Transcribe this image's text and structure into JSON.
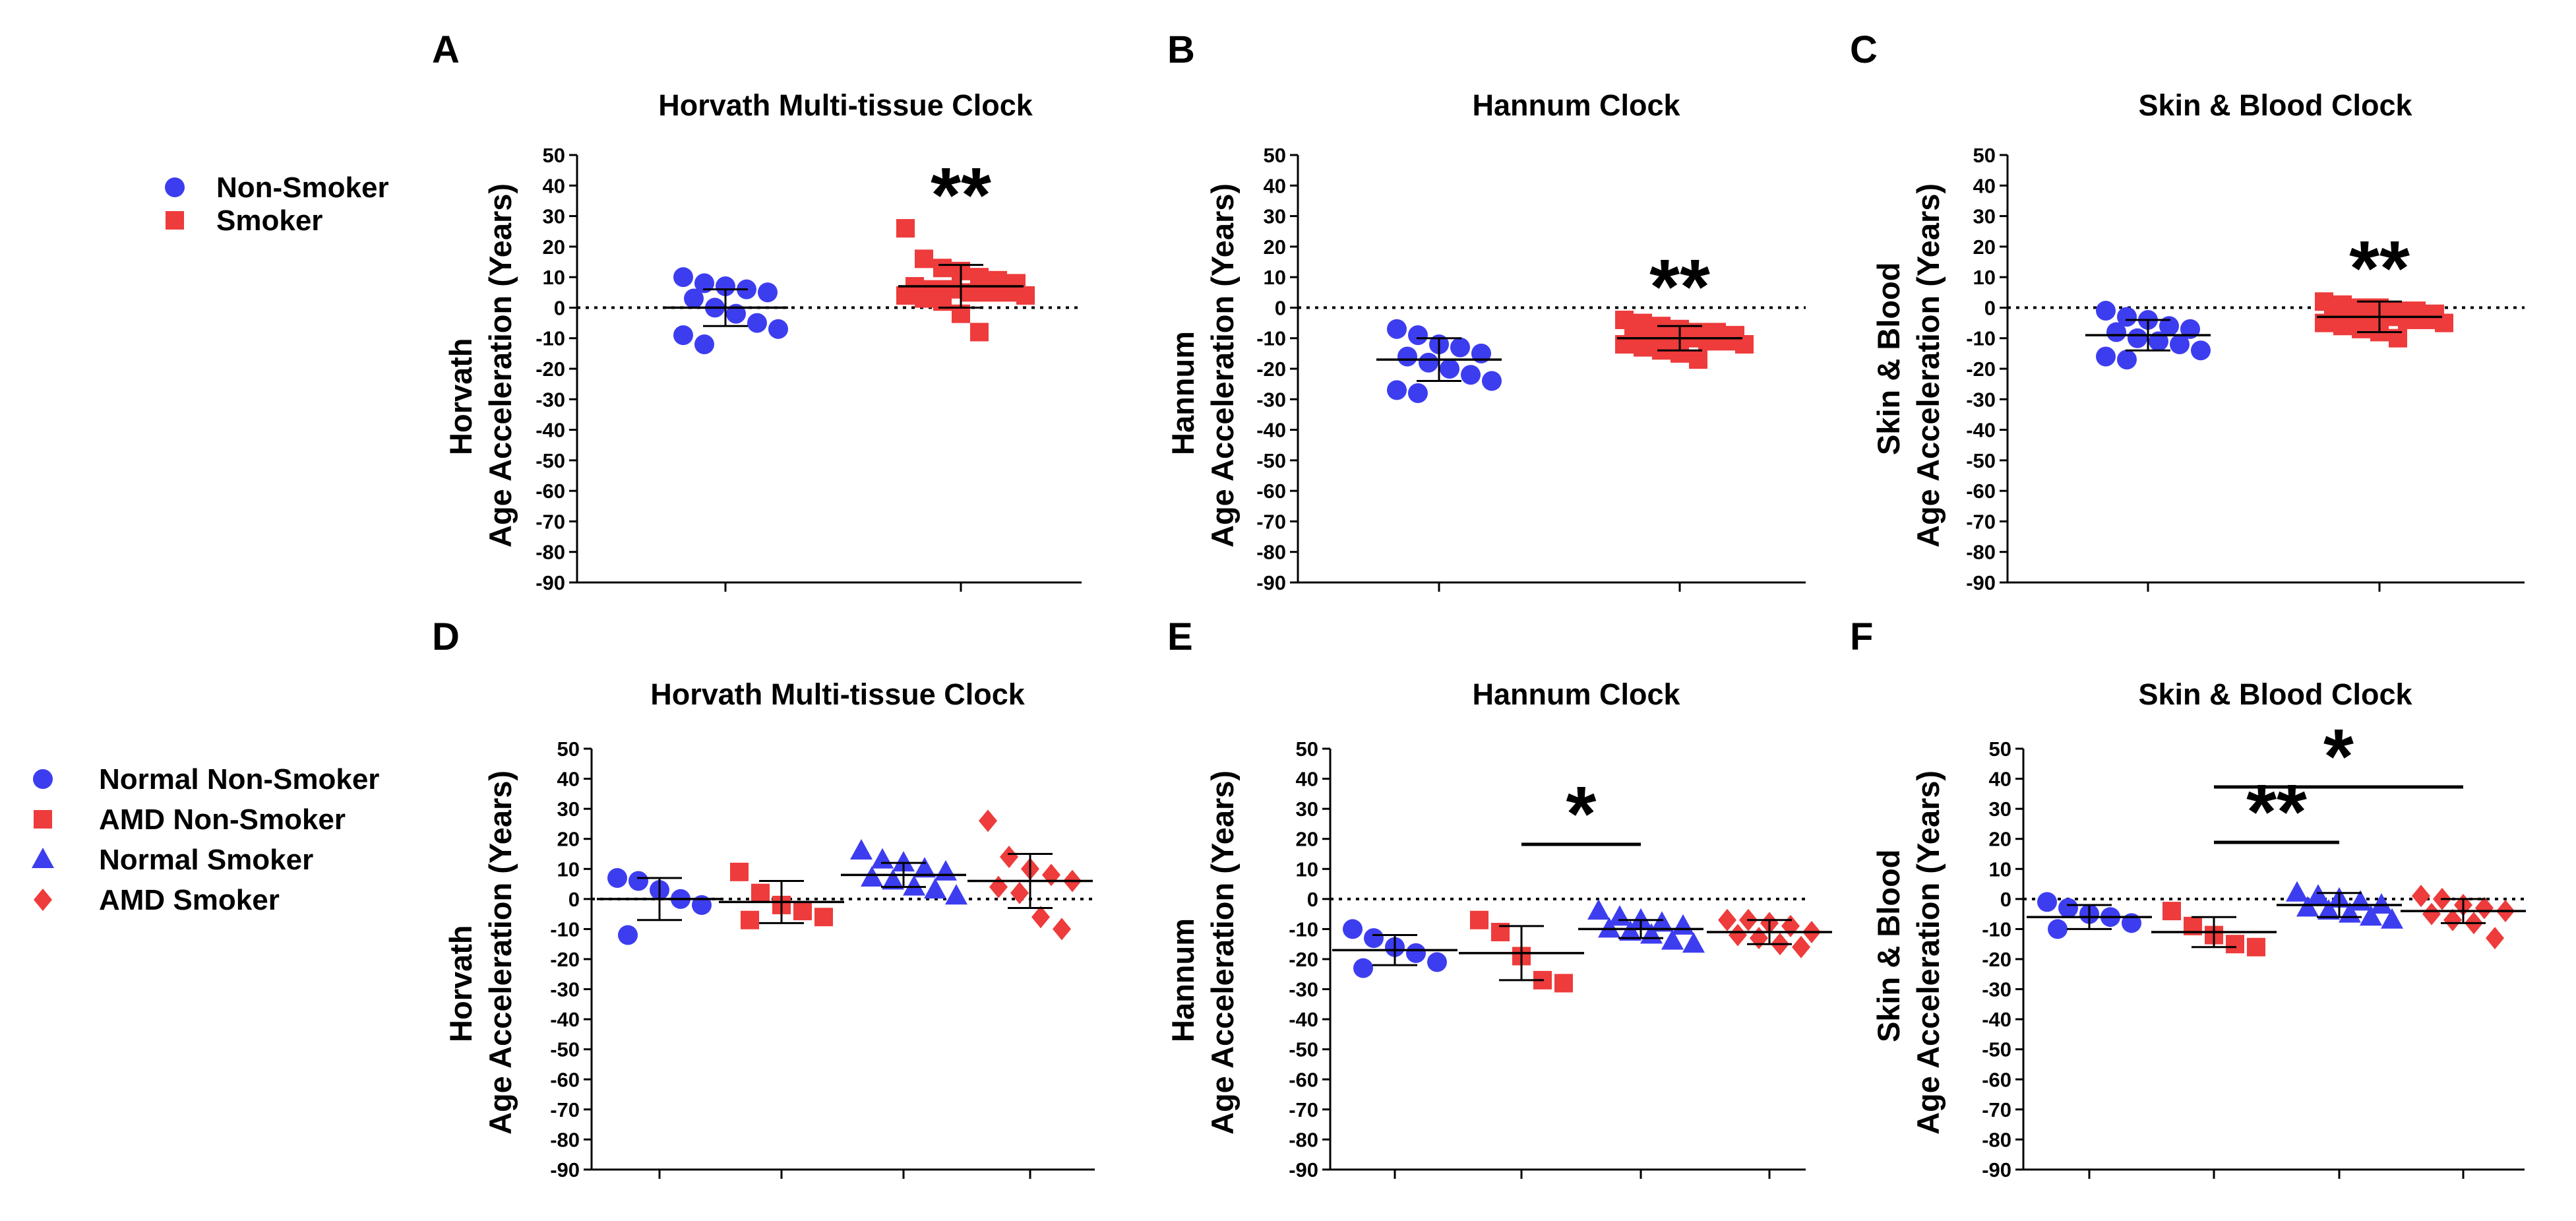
{
  "colors": {
    "blue": "#3d3df0",
    "red": "#ee3b3b",
    "axis": "#000000"
  },
  "legends": [
    {
      "name": "legend-top",
      "entries": [
        {
          "label": "Non-Smoker",
          "shape": "circle",
          "color": "#3d3df0"
        },
        {
          "label": "Smoker",
          "shape": "square",
          "color": "#ee3b3b"
        }
      ]
    },
    {
      "name": "legend-bottom",
      "entries": [
        {
          "label": "Normal Non-Smoker",
          "shape": "circle",
          "color": "#3d3df0"
        },
        {
          "label": "AMD Non-Smoker",
          "shape": "square",
          "color": "#ee3b3b"
        },
        {
          "label": "Normal Smoker",
          "shape": "triangle",
          "color": "#3d3df0"
        },
        {
          "label": "AMD Smoker",
          "shape": "diamond",
          "color": "#ee3b3b"
        }
      ]
    }
  ],
  "chart_data": [
    {
      "panel": "A",
      "type": "scatter",
      "title": "Horvath Multi-tissue Clock",
      "ylabel_lines": [
        "Horvath",
        "Age Acceleration (Years)"
      ],
      "ylim": [
        -90,
        50
      ],
      "yticks": [
        50,
        40,
        30,
        20,
        10,
        0,
        -10,
        -20,
        -30,
        -40,
        -50,
        -60,
        -70,
        -80,
        -90
      ],
      "reference_line": 0,
      "groups": [
        {
          "name": "Non-Smoker",
          "shape": "circle",
          "color": "#3d3df0",
          "mean": 0,
          "sd": 6,
          "values": [
            10,
            8,
            7,
            6,
            5,
            3,
            0,
            -2,
            -5,
            -7,
            -9,
            -12
          ]
        },
        {
          "name": "Smoker",
          "shape": "square",
          "color": "#ee3b3b",
          "mean": 7,
          "sd": 7,
          "values": [
            26,
            16,
            13,
            12,
            10,
            9,
            8,
            7,
            6,
            6,
            5,
            5,
            5,
            4,
            4,
            3,
            2,
            -2,
            -8
          ]
        }
      ],
      "significance": [
        {
          "label": "**",
          "group": 1
        }
      ]
    },
    {
      "panel": "B",
      "type": "scatter",
      "title": "Hannum Clock",
      "ylabel_lines": [
        "Hannum",
        "Age Acceleration (Years)"
      ],
      "ylim": [
        -90,
        50
      ],
      "yticks": [
        50,
        40,
        30,
        20,
        10,
        0,
        -10,
        -20,
        -30,
        -40,
        -50,
        -60,
        -70,
        -80,
        -90
      ],
      "reference_line": 0,
      "groups": [
        {
          "name": "Non-Smoker",
          "shape": "circle",
          "color": "#3d3df0",
          "mean": -17,
          "sd": 7,
          "values": [
            -7,
            -9,
            -12,
            -13,
            -15,
            -16,
            -18,
            -20,
            -22,
            -24,
            -27,
            -28
          ]
        },
        {
          "name": "Smoker",
          "shape": "square",
          "color": "#ee3b3b",
          "mean": -10,
          "sd": 4,
          "values": [
            -4,
            -5,
            -6,
            -7,
            -8,
            -8,
            -9,
            -9,
            -10,
            -10,
            -10,
            -11,
            -11,
            -12,
            -12,
            -13,
            -14,
            -15,
            -17
          ]
        }
      ],
      "significance": [
        {
          "label": "**",
          "group": 1
        }
      ]
    },
    {
      "panel": "C",
      "type": "scatter",
      "title": "Skin & Blood Clock",
      "ylabel_lines": [
        "Skin & Blood",
        "Age Acceleration (Years)"
      ],
      "ylim": [
        -90,
        50
      ],
      "yticks": [
        50,
        40,
        30,
        20,
        10,
        0,
        -10,
        -20,
        -30,
        -40,
        -50,
        -60,
        -70,
        -80,
        -90
      ],
      "reference_line": 0,
      "groups": [
        {
          "name": "Non-Smoker",
          "shape": "circle",
          "color": "#3d3df0",
          "mean": -9,
          "sd": 5,
          "values": [
            -1,
            -3,
            -4,
            -6,
            -7,
            -8,
            -10,
            -11,
            -12,
            -14,
            -16,
            -17
          ]
        },
        {
          "name": "Smoker",
          "shape": "square",
          "color": "#ee3b3b",
          "mean": -3,
          "sd": 5,
          "values": [
            2,
            1,
            0,
            0,
            -1,
            -1,
            -2,
            -2,
            -3,
            -3,
            -3,
            -4,
            -4,
            -5,
            -5,
            -6,
            -7,
            -8,
            -10
          ]
        }
      ],
      "significance": [
        {
          "label": "**",
          "group": 1
        }
      ]
    },
    {
      "panel": "D",
      "type": "scatter",
      "title": "Horvath Multi-tissue Clock",
      "ylabel_lines": [
        "Horvath",
        "Age Acceleration (Years)"
      ],
      "ylim": [
        -90,
        50
      ],
      "yticks": [
        50,
        40,
        30,
        20,
        10,
        0,
        -10,
        -20,
        -30,
        -40,
        -50,
        -60,
        -70,
        -80,
        -90
      ],
      "reference_line": 0,
      "groups": [
        {
          "name": "Normal Non-Smoker",
          "shape": "circle",
          "color": "#3d3df0",
          "mean": 0,
          "sd": 7,
          "values": [
            7,
            6,
            3,
            0,
            -2,
            -12
          ]
        },
        {
          "name": "AMD Non-Smoker",
          "shape": "square",
          "color": "#ee3b3b",
          "mean": -1,
          "sd": 7,
          "values": [
            9,
            2,
            -2,
            -4,
            -6,
            -7
          ]
        },
        {
          "name": "Normal Smoker",
          "shape": "triangle",
          "color": "#3d3df0",
          "mean": 8,
          "sd": 4,
          "values": [
            16,
            13,
            12,
            10,
            9,
            7,
            6,
            4,
            3,
            1
          ]
        },
        {
          "name": "AMD Smoker",
          "shape": "diamond",
          "color": "#ee3b3b",
          "mean": 6,
          "sd": 9,
          "values": [
            26,
            14,
            10,
            8,
            6,
            4,
            2,
            -6,
            -10
          ]
        }
      ],
      "significance": []
    },
    {
      "panel": "E",
      "type": "scatter",
      "title": "Hannum Clock",
      "ylabel_lines": [
        "Hannum",
        "Age Acceleration (Years)"
      ],
      "ylim": [
        -90,
        50
      ],
      "yticks": [
        50,
        40,
        30,
        20,
        10,
        0,
        -10,
        -20,
        -30,
        -40,
        -50,
        -60,
        -70,
        -80,
        -90
      ],
      "reference_line": 0,
      "groups": [
        {
          "name": "Normal Non-Smoker",
          "shape": "circle",
          "color": "#3d3df0",
          "mean": -17,
          "sd": 5,
          "values": [
            -10,
            -13,
            -16,
            -18,
            -21,
            -23
          ]
        },
        {
          "name": "AMD Non-Smoker",
          "shape": "square",
          "color": "#ee3b3b",
          "mean": -18,
          "sd": 9,
          "values": [
            -7,
            -11,
            -19,
            -27,
            -28
          ]
        },
        {
          "name": "Normal Smoker",
          "shape": "triangle",
          "color": "#3d3df0",
          "mean": -10,
          "sd": 3,
          "values": [
            -4,
            -6,
            -7,
            -8,
            -9,
            -10,
            -11,
            -12,
            -14,
            -15
          ]
        },
        {
          "name": "AMD Smoker",
          "shape": "diamond",
          "color": "#ee3b3b",
          "mean": -11,
          "sd": 4,
          "values": [
            -7,
            -7,
            -8,
            -9,
            -11,
            -12,
            -13,
            -15,
            -16
          ]
        }
      ],
      "significance": [
        {
          "label": "*",
          "from": 1,
          "to": 2
        }
      ]
    },
    {
      "panel": "F",
      "type": "scatter",
      "title": "Skin & Blood Clock",
      "ylabel_lines": [
        "Skin & Blood",
        "Age Acceleration (Years)"
      ],
      "ylim": [
        -90,
        50
      ],
      "yticks": [
        50,
        40,
        30,
        20,
        10,
        0,
        -10,
        -20,
        -30,
        -40,
        -50,
        -60,
        -70,
        -80,
        -90
      ],
      "reference_line": 0,
      "groups": [
        {
          "name": "Normal Non-Smoker",
          "shape": "circle",
          "color": "#3d3df0",
          "mean": -6,
          "sd": 4,
          "values": [
            -1,
            -3,
            -5,
            -6,
            -8,
            -10
          ]
        },
        {
          "name": "AMD Non-Smoker",
          "shape": "square",
          "color": "#ee3b3b",
          "mean": -11,
          "sd": 5,
          "values": [
            -4,
            -9,
            -12,
            -15,
            -16
          ]
        },
        {
          "name": "Normal Smoker",
          "shape": "triangle",
          "color": "#3d3df0",
          "mean": -2,
          "sd": 4,
          "values": [
            2,
            1,
            0,
            -1,
            -2,
            -3,
            -4,
            -5,
            -6,
            -7
          ]
        },
        {
          "name": "AMD Smoker",
          "shape": "diamond",
          "color": "#ee3b3b",
          "mean": -4,
          "sd": 4,
          "values": [
            1,
            0,
            -2,
            -3,
            -4,
            -5,
            -7,
            -8,
            -13
          ]
        }
      ],
      "significance": [
        {
          "label": "*",
          "from": 1,
          "to": 3
        },
        {
          "label": "**",
          "from": 1,
          "to": 2
        }
      ]
    }
  ]
}
